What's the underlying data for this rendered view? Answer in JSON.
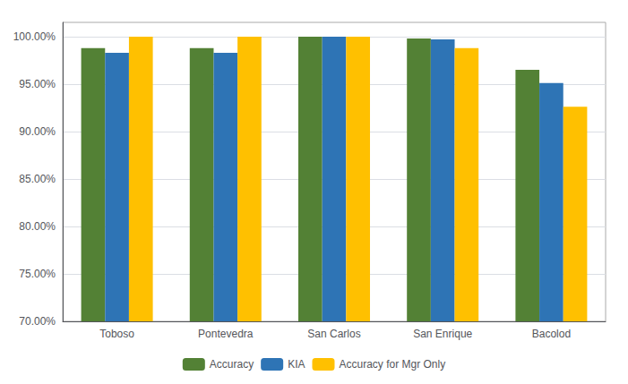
{
  "chart_data": {
    "type": "bar",
    "categories": [
      "Toboso",
      "Pontevedra",
      "San Carlos",
      "San Enrique",
      "Bacolod"
    ],
    "series": [
      {
        "name": "Accuracy",
        "color": "#538135",
        "values": [
          98.8,
          98.8,
          100.0,
          99.8,
          96.5
        ]
      },
      {
        "name": "KIA",
        "color": "#2E74B5",
        "values": [
          98.3,
          98.3,
          100.0,
          99.7,
          95.1
        ]
      },
      {
        "name": "Accuracy for Mgr Only",
        "color": "#FFC000",
        "values": [
          100.0,
          100.0,
          100.0,
          98.8,
          92.6
        ]
      }
    ],
    "ylim": [
      70,
      101.5
    ],
    "yticks": [
      {
        "value": 70,
        "label": "70.00%"
      },
      {
        "value": 75,
        "label": "75.00%"
      },
      {
        "value": 80,
        "label": "80.00%"
      },
      {
        "value": 85,
        "label": "85.00%"
      },
      {
        "value": 90,
        "label": "90.00%"
      },
      {
        "value": 95,
        "label": "95.00%"
      },
      {
        "value": 100,
        "label": "100.00%"
      }
    ],
    "grid": true,
    "legend": "bottom"
  }
}
